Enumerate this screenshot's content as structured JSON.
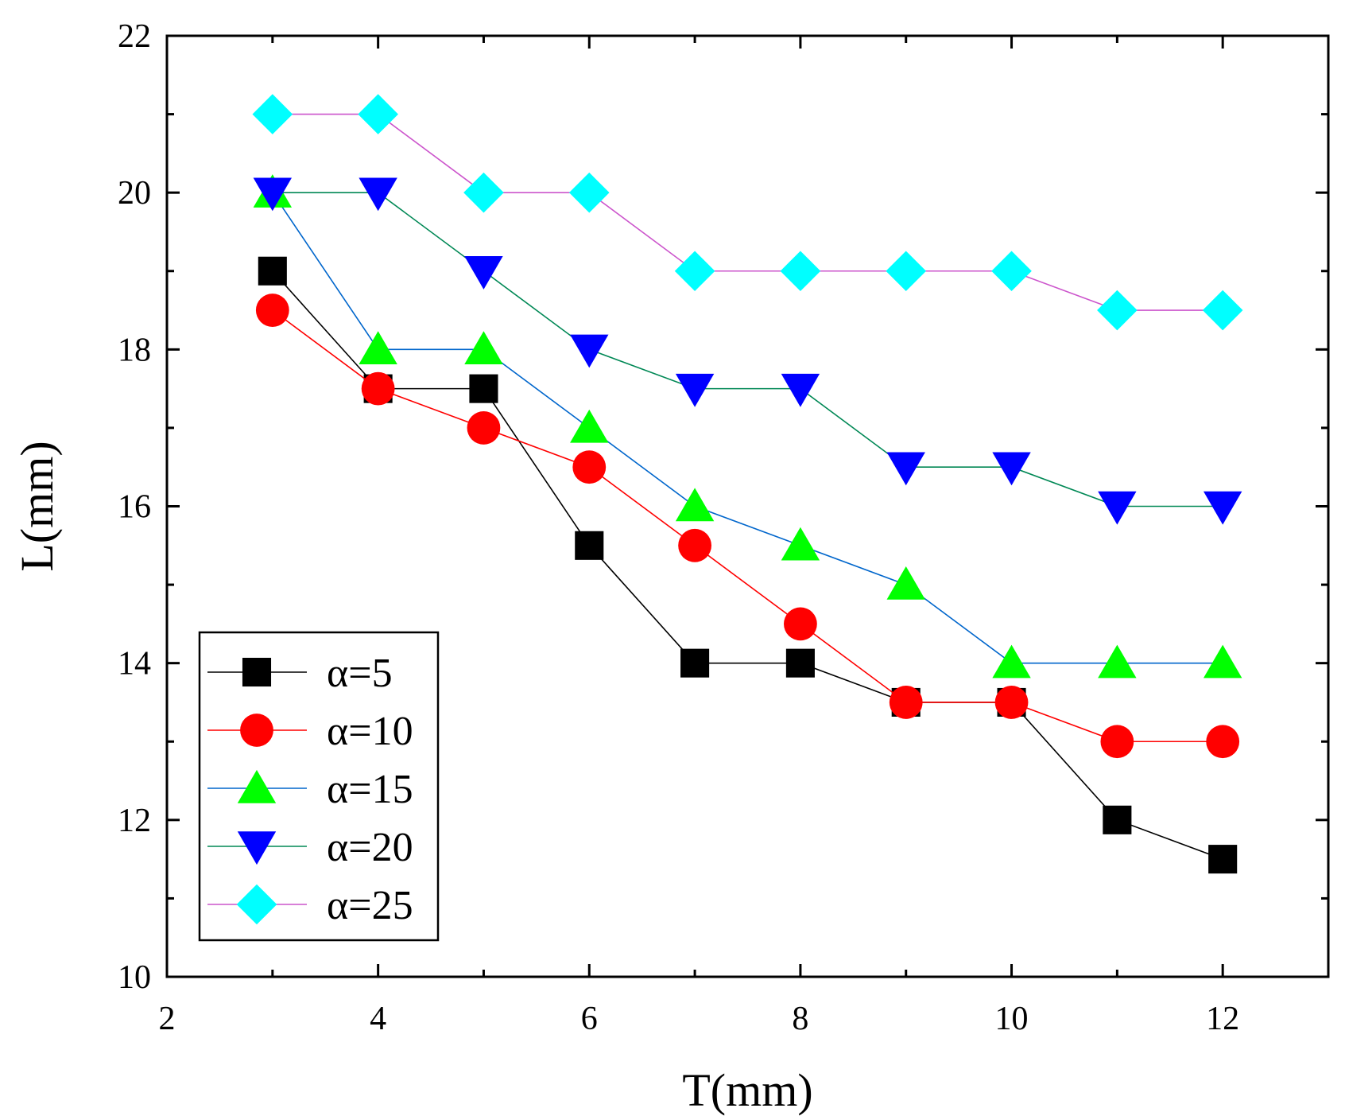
{
  "chart_data": {
    "type": "line",
    "title": "",
    "xlabel": "T(mm)",
    "ylabel": "L(mm)",
    "xlim": [
      2,
      13
    ],
    "ylim": [
      10,
      22
    ],
    "xticks": [
      2,
      4,
      6,
      8,
      10,
      12
    ],
    "yticks": [
      10,
      12,
      14,
      16,
      18,
      20,
      22
    ],
    "grid": false,
    "legend_position": "bottom-left",
    "x": [
      3,
      4,
      5,
      6,
      7,
      8,
      9,
      10,
      11,
      12
    ],
    "series": [
      {
        "name": "α=5",
        "color": "#000000",
        "line_color": "#000000",
        "marker": "square",
        "values": [
          19,
          17.5,
          17.5,
          15.5,
          14,
          14,
          13.5,
          13.5,
          12,
          11.5
        ]
      },
      {
        "name": "α=10",
        "color": "#ff0000",
        "line_color": "#ff0000",
        "marker": "circle",
        "values": [
          18.5,
          17.5,
          17,
          16.5,
          15.5,
          14.5,
          13.5,
          13.5,
          13,
          13
        ]
      },
      {
        "name": "α=15",
        "color": "#00ff00",
        "line_color": "#0066cc",
        "marker": "triangle-up",
        "values": [
          20,
          18,
          18,
          17,
          16,
          15.5,
          15,
          14,
          14,
          14
        ]
      },
      {
        "name": "α=20",
        "color": "#0000ff",
        "line_color": "#008855",
        "marker": "triangle-down",
        "values": [
          20,
          20,
          19,
          18,
          17.5,
          17.5,
          16.5,
          16.5,
          16,
          16
        ]
      },
      {
        "name": "α=25",
        "color": "#00ffff",
        "line_color": "#cc55cc",
        "marker": "diamond",
        "values": [
          21,
          21,
          20,
          20,
          19,
          19,
          19,
          19,
          18.5,
          18.5
        ]
      }
    ]
  }
}
